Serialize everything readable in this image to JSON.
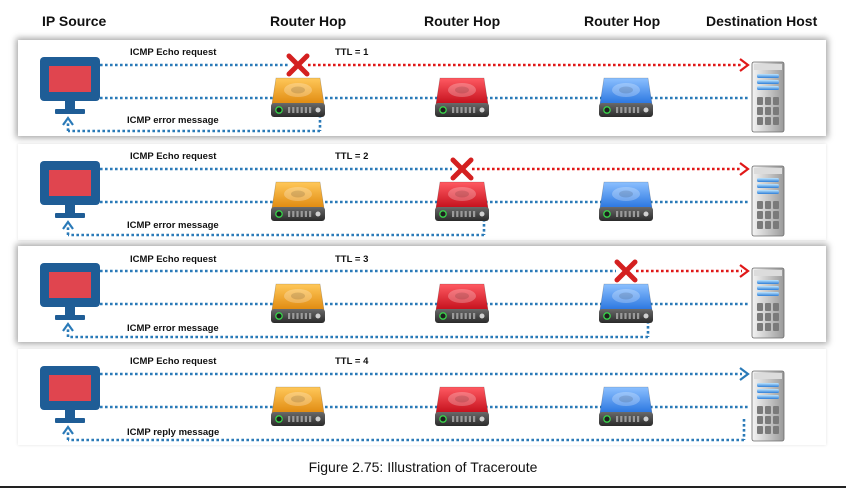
{
  "headers": {
    "ip_source": "IP Source",
    "router_hop_1": "Router Hop",
    "router_hop_2": "Router Hop",
    "router_hop_3": "Router Hop",
    "destination": "Destination Host"
  },
  "rows": [
    {
      "request_label": "ICMP Echo request",
      "ttl": "TTL = 1",
      "return_label": "ICMP error message",
      "failure_at": 1,
      "style": "shadowed"
    },
    {
      "request_label": "ICMP Echo request",
      "ttl": "TTL = 2",
      "return_label": "ICMP error message",
      "failure_at": 2,
      "style": "plain"
    },
    {
      "request_label": "ICMP Echo request",
      "ttl": "TTL = 3",
      "return_label": "ICMP error message",
      "failure_at": 3,
      "style": "shadowed"
    },
    {
      "request_label": "ICMP Echo request",
      "ttl": "TTL = 4",
      "return_label": "ICMP reply message",
      "failure_at": 0,
      "style": "plain"
    }
  ],
  "caption": "Figure 2.75: Illustration of Traceroute",
  "colors": {
    "request_line": "#2a7ab8",
    "dropped_line": "#e01818",
    "monitor_frame": "#1f5d96",
    "monitor_screen": "#e0454f",
    "router_1": "#f5a623",
    "router_2": "#e8202c",
    "router_3": "#3d8ef0",
    "failure_mark": "#d42020"
  },
  "icons": [
    "monitor-icon",
    "router-icon",
    "server-icon",
    "failure-x-icon"
  ]
}
